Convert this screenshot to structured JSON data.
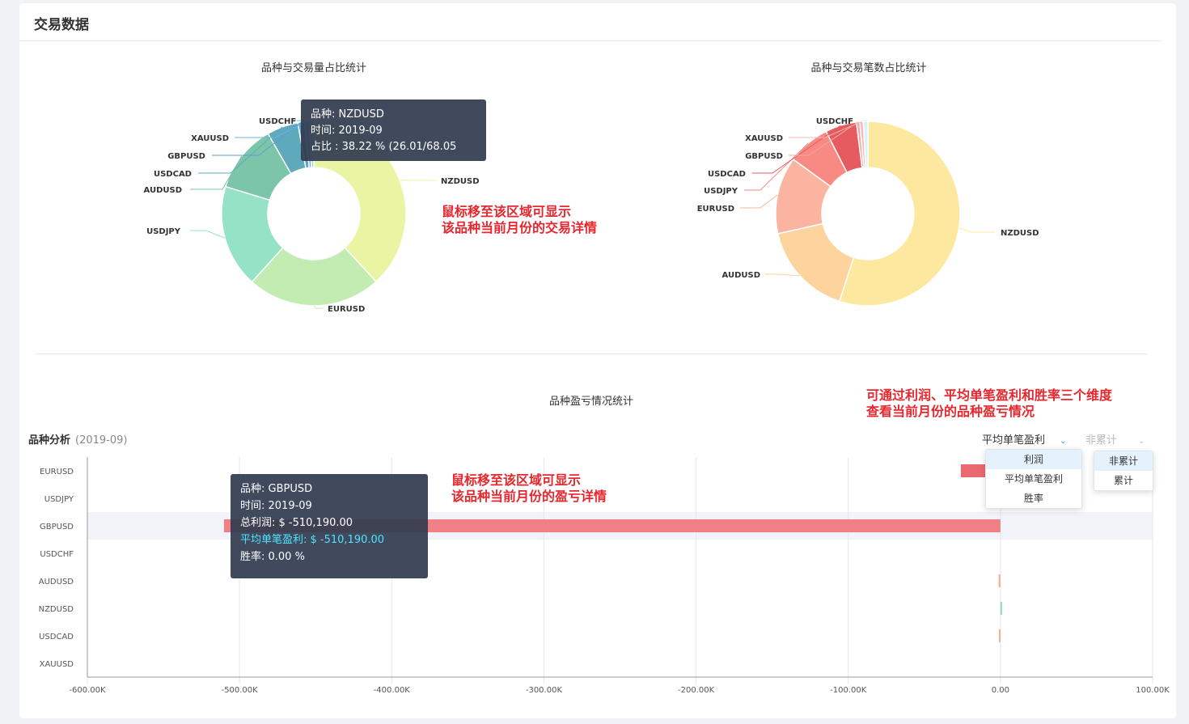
{
  "panel": {
    "title": "交易数据"
  },
  "pie_volume": {
    "title": "品种与交易量占比统计",
    "tooltip": {
      "line1": "品种: NZDUSD",
      "line2": "时间: 2019-09",
      "line3": "占比 : 38.22 %  (26.01/68.05"
    }
  },
  "pie_count": {
    "title": "品种与交易笔数占比统计"
  },
  "annotations": {
    "pie_line1": "鼠标移至该区域可显示",
    "pie_line2": "该品种当前月份的交易详情",
    "bar_line1": "鼠标移至该区域可显示",
    "bar_line2": "该品种当前月份的盈亏详情",
    "top_line1": "可通过利润、平均单笔盈利和胜率三个维度",
    "top_line2": "查看当前月份的品种盈亏情况"
  },
  "bar_section": {
    "title": "品种盈亏情况统计",
    "subtitle": "品种分析",
    "period": "(2019-09)",
    "metric_select": "平均单笔盈利",
    "metric_options": [
      "利润",
      "平均单笔盈利",
      "胜率"
    ],
    "cumulative_select": "非累计",
    "cumulative_options": [
      "非累计",
      "累计"
    ],
    "tooltip": {
      "line1": "品种: GBPUSD",
      "line2": "时间: 2019-09",
      "line3": "总利润: $ -510,190.00",
      "line4": "平均单笔盈利: $ -510,190.00",
      "line5": "胜率: 0.00 %"
    }
  },
  "chart_data": [
    {
      "type": "pie",
      "title": "品种与交易量占比统计",
      "donut": true,
      "labels": [
        "NZDUSD",
        "EURUSD",
        "USDJPY",
        "AUDUSD",
        "USDCAD",
        "GBPUSD",
        "XAUUSD",
        "USDCHF"
      ],
      "values": [
        38.22,
        23.5,
        18.0,
        12.0,
        5.5,
        1.2,
        0.8,
        0.78
      ],
      "colors": [
        "#e9f5a3",
        "#c3ecb2",
        "#96e2c6",
        "#7cc5a8",
        "#5fa9bd",
        "#5b9fd0",
        "#6fb0e0",
        "#9bd3ee"
      ]
    },
    {
      "type": "pie",
      "title": "品种与交易笔数占比统计",
      "donut": true,
      "labels": [
        "NZDUSD",
        "AUDUSD",
        "EURUSD",
        "USDJPY",
        "USDCAD",
        "GBPUSD",
        "XAUUSD",
        "USDCHF"
      ],
      "values": [
        55.0,
        16.5,
        13.5,
        7.5,
        5.5,
        0.6,
        0.6,
        0.8
      ],
      "colors": [
        "#fde8a0",
        "#fdd49e",
        "#fbb4a0",
        "#f98a83",
        "#e55b60",
        "#f3a6a6",
        "#f7b6b6",
        "#d7f3f7"
      ]
    },
    {
      "type": "bar",
      "orientation": "horizontal",
      "title": "品种盈亏情况统计",
      "categories": [
        "EURUSD",
        "USDJPY",
        "GBPUSD",
        "USDCHF",
        "AUDUSD",
        "NZDUSD",
        "USDCAD",
        "XAUUSD"
      ],
      "values": [
        -26000,
        0,
        -510190,
        0,
        -1200,
        800,
        -1000,
        0
      ],
      "x_ticks": [
        "-600.00K",
        "-500.00K",
        "-400.00K",
        "-300.00K",
        "-200.00K",
        "-100.00K",
        "0.00",
        "100.00K"
      ],
      "xlim": [
        -600000,
        100000
      ],
      "grid": true
    }
  ]
}
